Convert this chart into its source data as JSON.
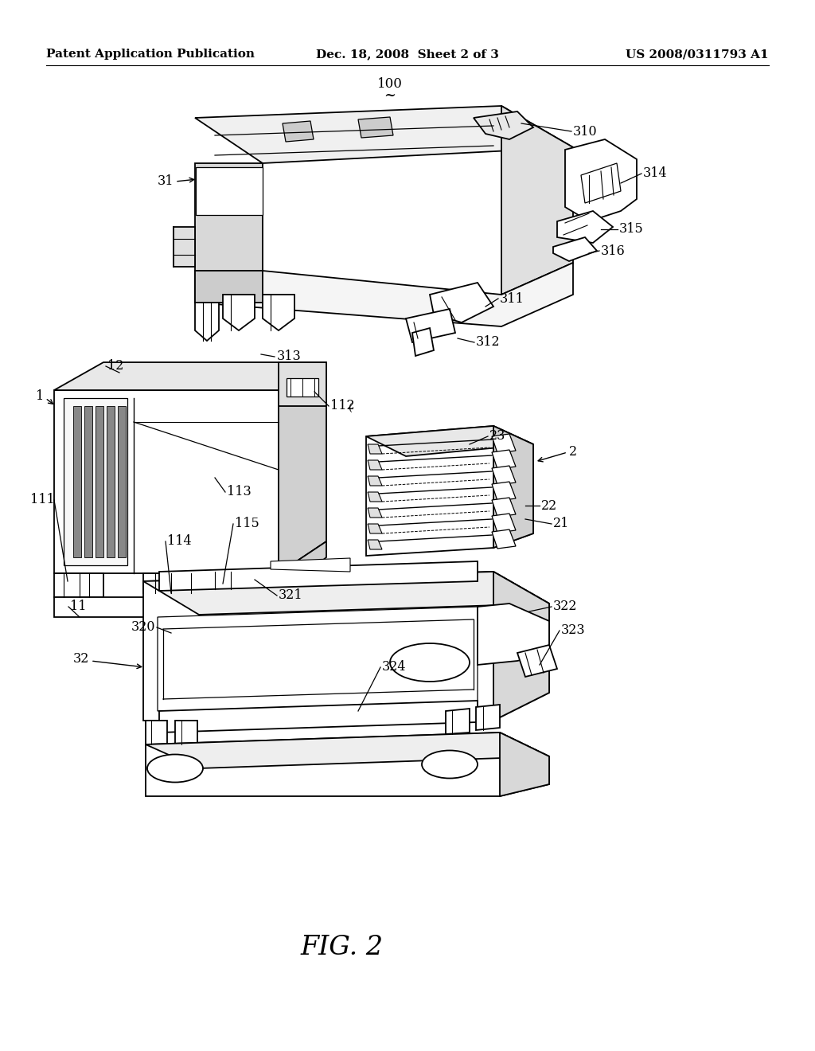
{
  "background_color": "#ffffff",
  "header_left": "Patent Application Publication",
  "header_center": "Dec. 18, 2008  Sheet 2 of 3",
  "header_right": "US 2008/0311793 A1",
  "figure_label": "FIG. 2",
  "line_color": "#000000",
  "text_color": "#000000",
  "line_width": 1.3,
  "header_fontsize": 11,
  "label_fontsize": 11.5,
  "figure_label_fontsize": 24
}
